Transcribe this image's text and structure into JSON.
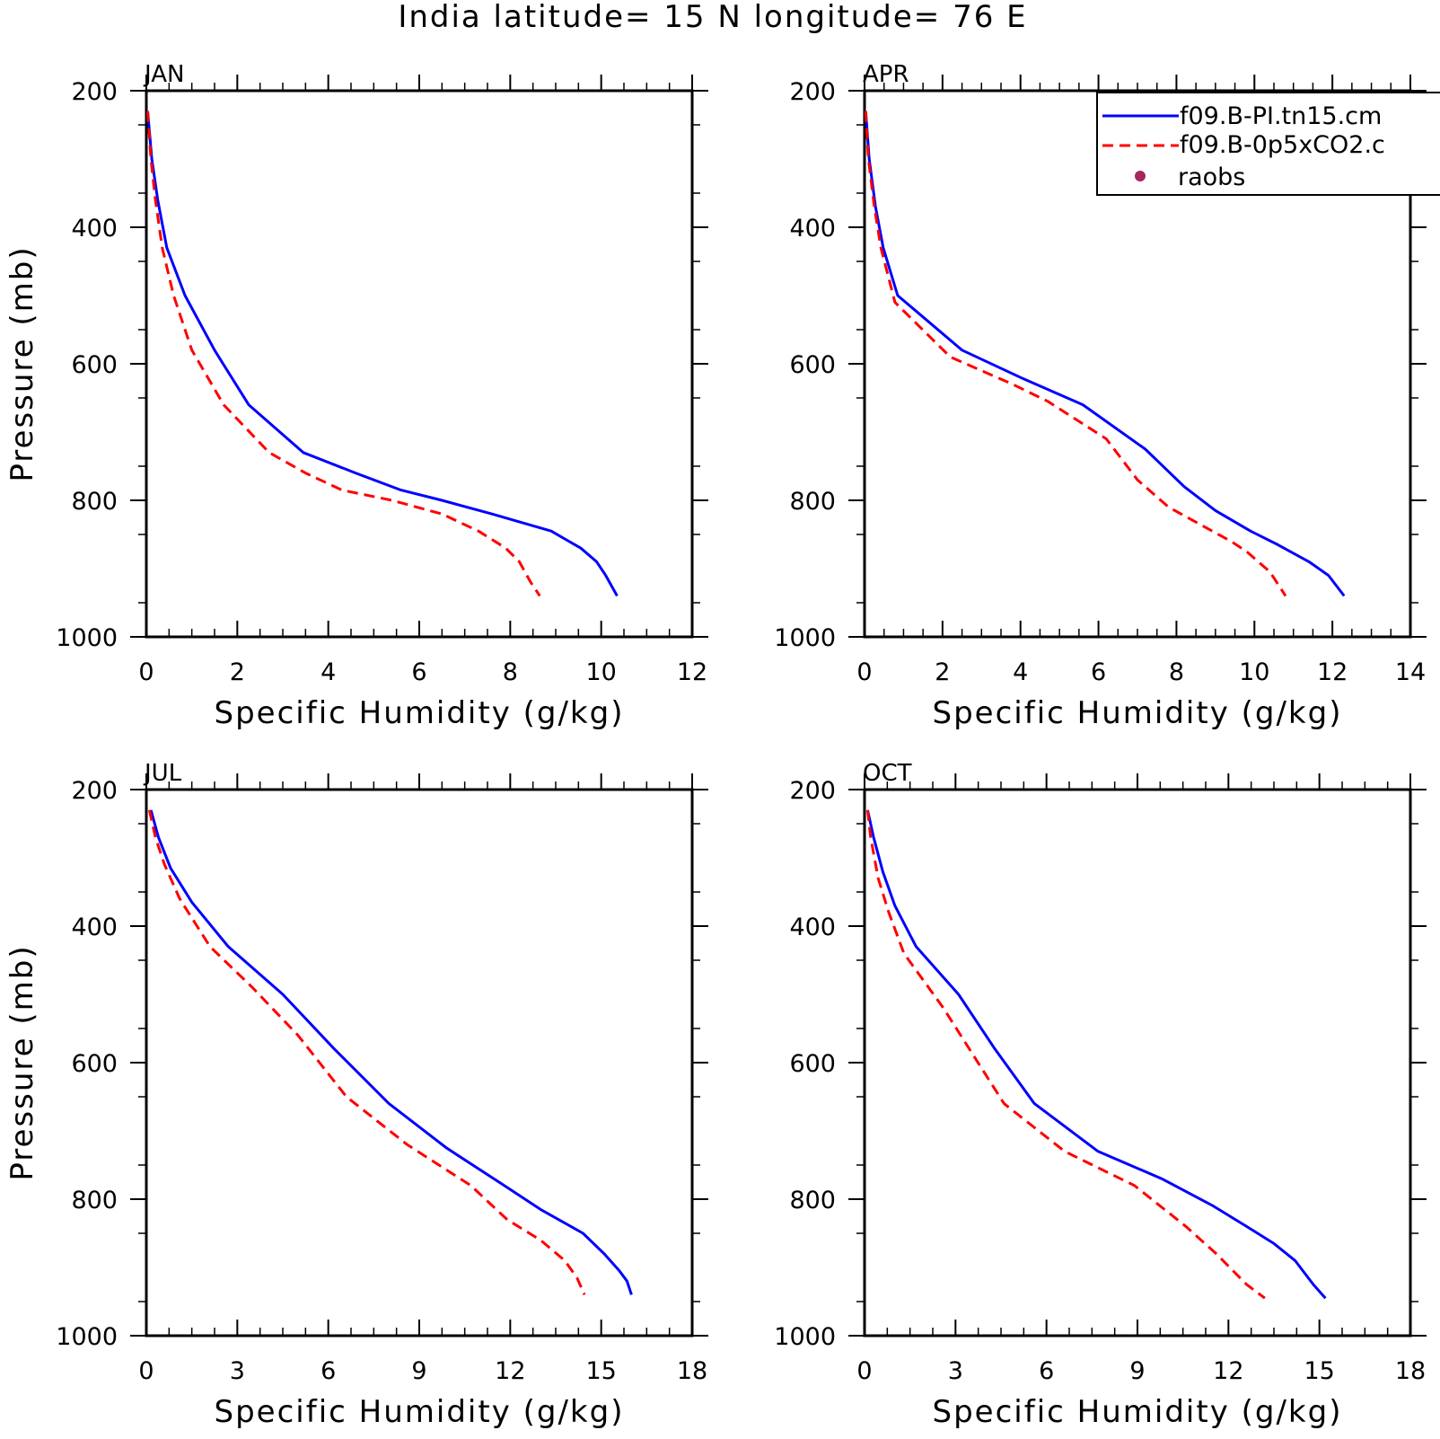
{
  "title": "India  latitude= 15 N longitude= 76 E",
  "legend": {
    "entries": [
      {
        "label": "f09.B-PI.tn15.cm",
        "style": "solid",
        "color": "#0000ff"
      },
      {
        "label": "f09.B-0p5xCO2.c",
        "style": "dashed",
        "color": "#ff0000"
      },
      {
        "label": "raobs",
        "style": "marker",
        "color": "#a3285c"
      }
    ]
  },
  "colors": {
    "series_1": "#0000ff",
    "series_2": "#ff0000",
    "raobs": "#a3285c"
  },
  "chart_data": [
    {
      "type": "line",
      "title": "JAN",
      "xlabel": "Specific Humidity (g/kg)",
      "ylabel": "Pressure (mb)",
      "xlim": [
        0,
        12
      ],
      "ylim": [
        1000,
        200
      ],
      "y_inverted": true,
      "xticks": [
        "0",
        "2",
        "4",
        "6",
        "8",
        "10",
        "12"
      ],
      "yticks": [
        "200",
        "400",
        "600",
        "800",
        "1000"
      ],
      "series": [
        {
          "name": "f09.B-PI.tn15.cm",
          "x": [
            0.03,
            0.12,
            0.25,
            0.45,
            0.85,
            1.5,
            2.25,
            3.45,
            4.6,
            5.6,
            6.5,
            7.6,
            8.9,
            9.55,
            9.9,
            10.1,
            10.35
          ],
          "y": [
            230,
            300,
            360,
            430,
            500,
            580,
            660,
            730,
            760,
            785,
            800,
            820,
            845,
            870,
            890,
            910,
            940
          ]
        },
        {
          "name": "f09.B-0p5xCO2.c",
          "x": [
            0.03,
            0.1,
            0.2,
            0.35,
            0.6,
            1.0,
            1.7,
            2.7,
            3.5,
            4.3,
            5.4,
            6.5,
            7.3,
            7.9,
            8.2,
            8.45,
            8.65
          ],
          "y": [
            230,
            300,
            360,
            430,
            500,
            580,
            660,
            730,
            760,
            785,
            800,
            820,
            845,
            870,
            890,
            920,
            940
          ]
        }
      ]
    },
    {
      "type": "line",
      "title": "APR",
      "xlabel": "Specific Humidity (g/kg)",
      "ylabel": "",
      "xlim": [
        0,
        14
      ],
      "ylim": [
        1000,
        200
      ],
      "y_inverted": true,
      "xticks": [
        "0",
        "2",
        "4",
        "6",
        "8",
        "10",
        "12",
        "14"
      ],
      "yticks": [
        "200",
        "400",
        "600",
        "800",
        "1000"
      ],
      "series": [
        {
          "name": "f09.B-PI.tn15.cm",
          "x": [
            0.03,
            0.12,
            0.28,
            0.48,
            0.85,
            2.5,
            4.0,
            5.6,
            7.2,
            8.2,
            9.0,
            9.9,
            10.6,
            11.4,
            11.9,
            12.3
          ],
          "y": [
            230,
            300,
            370,
            430,
            500,
            580,
            620,
            660,
            725,
            780,
            815,
            845,
            865,
            890,
            910,
            940
          ]
        },
        {
          "name": "f09.B-0p5xCO2.c",
          "x": [
            0.03,
            0.1,
            0.25,
            0.42,
            0.78,
            2.2,
            3.8,
            4.7,
            6.2,
            7.0,
            7.8,
            8.6,
            9.4,
            9.8,
            10.4,
            10.8
          ],
          "y": [
            230,
            300,
            370,
            430,
            510,
            590,
            630,
            655,
            710,
            770,
            810,
            835,
            860,
            875,
            905,
            940
          ]
        }
      ]
    },
    {
      "type": "line",
      "title": "JUL",
      "xlabel": "Specific Humidity (g/kg)",
      "ylabel": "Pressure (mb)",
      "xlim": [
        0,
        18
      ],
      "ylim": [
        1000,
        200
      ],
      "y_inverted": true,
      "xticks": [
        "0",
        "3",
        "6",
        "9",
        "12",
        "15",
        "18"
      ],
      "yticks": [
        "200",
        "400",
        "600",
        "800",
        "1000"
      ],
      "series": [
        {
          "name": "f09.B-PI.tn15.cm",
          "x": [
            0.15,
            0.4,
            0.8,
            1.5,
            2.7,
            4.5,
            6.2,
            8.0,
            9.9,
            11.8,
            13.0,
            14.4,
            15.1,
            15.6,
            15.85,
            16.0
          ],
          "y": [
            230,
            270,
            315,
            365,
            430,
            500,
            580,
            660,
            725,
            780,
            815,
            850,
            880,
            905,
            920,
            940
          ]
        },
        {
          "name": "f09.B-0p5xCO2.c",
          "x": [
            0.1,
            0.3,
            0.6,
            1.1,
            2.1,
            3.5,
            5.0,
            6.6,
            8.6,
            10.7,
            11.9,
            13.0,
            13.8,
            14.2,
            14.45
          ],
          "y": [
            230,
            270,
            310,
            360,
            430,
            490,
            560,
            650,
            720,
            780,
            830,
            860,
            890,
            915,
            940
          ]
        }
      ]
    },
    {
      "type": "line",
      "title": "OCT",
      "xlabel": "Specific Humidity (g/kg)",
      "ylabel": "",
      "xlim": [
        0,
        18
      ],
      "ylim": [
        1000,
        200
      ],
      "y_inverted": true,
      "xticks": [
        "0",
        "3",
        "6",
        "9",
        "12",
        "15",
        "18"
      ],
      "yticks": [
        "200",
        "400",
        "600",
        "800",
        "1000"
      ],
      "series": [
        {
          "name": "f09.B-PI.tn15.cm",
          "x": [
            0.1,
            0.3,
            0.6,
            1.0,
            1.7,
            3.1,
            4.3,
            5.6,
            7.7,
            9.8,
            11.5,
            12.6,
            13.5,
            14.2,
            14.8,
            15.2
          ],
          "y": [
            230,
            270,
            320,
            370,
            430,
            500,
            580,
            660,
            730,
            770,
            810,
            840,
            865,
            890,
            925,
            945
          ]
        },
        {
          "name": "f09.B-0p5xCO2.c",
          "x": [
            0.1,
            0.2,
            0.45,
            0.8,
            1.3,
            2.6,
            3.6,
            4.6,
            6.6,
            8.9,
            10.6,
            11.6,
            12.6,
            13.2
          ],
          "y": [
            230,
            270,
            330,
            380,
            440,
            520,
            590,
            660,
            730,
            780,
            840,
            880,
            925,
            945
          ]
        }
      ]
    }
  ]
}
